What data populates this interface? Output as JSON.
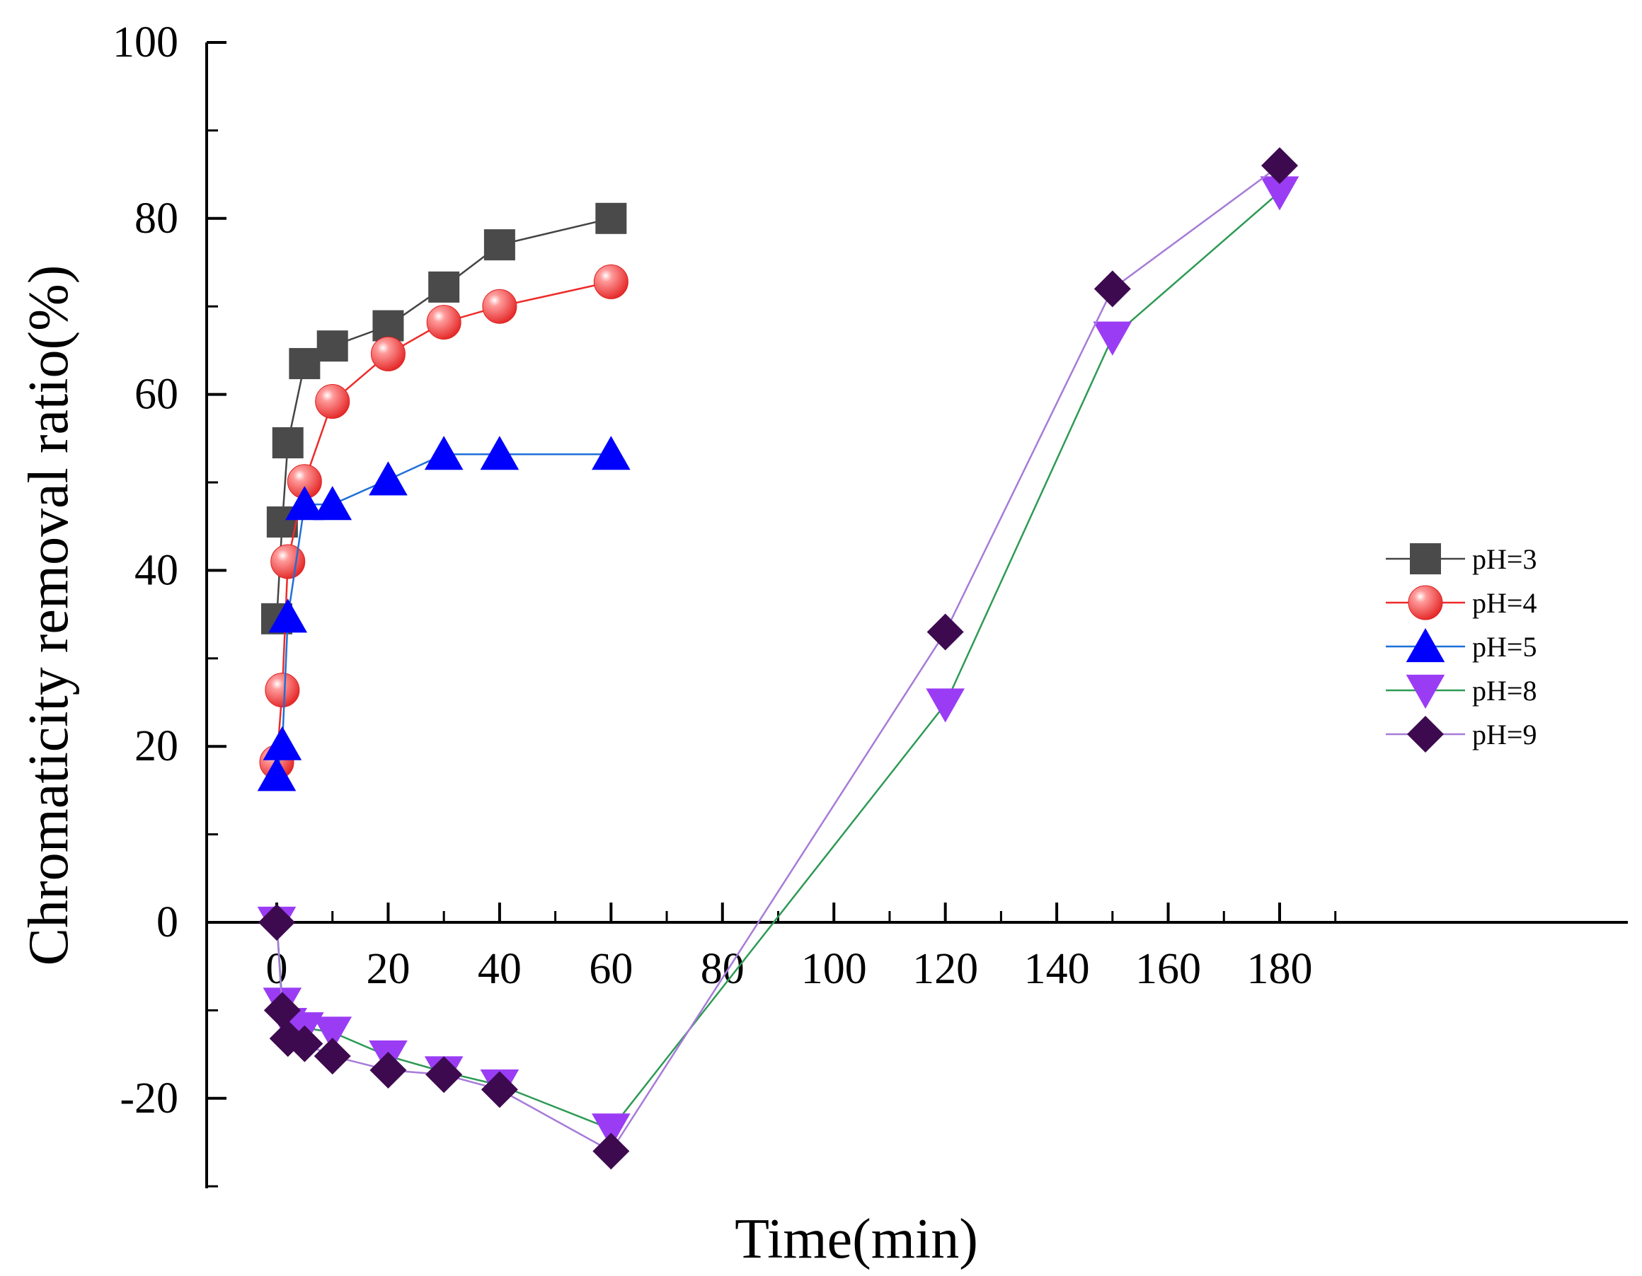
{
  "chart_data": {
    "type": "line",
    "title": "",
    "xlabel": "Time(min)",
    "ylabel": "Chromaticity removal ratio(%)",
    "xlim": [
      -10,
      190
    ],
    "ylim": [
      -30,
      100
    ],
    "xticks": [
      0,
      20,
      40,
      60,
      80,
      100,
      120,
      140,
      160,
      180
    ],
    "yticks": [
      -20,
      0,
      20,
      40,
      60,
      80,
      100
    ],
    "grid": false,
    "legend_position": "right",
    "series": [
      {
        "name": "pH=3",
        "marker": "square",
        "line_color": "#444444",
        "marker_color": "#4a4a4a",
        "x": [
          0,
          1,
          2,
          5,
          10,
          20,
          30,
          40,
          60
        ],
        "y": [
          34.5,
          45.5,
          54.5,
          63.5,
          65.5,
          67.8,
          72.2,
          77,
          80
        ]
      },
      {
        "name": "pH=4",
        "marker": "circle",
        "line_color": "#ee2a2a",
        "marker_color": "#ee3333",
        "x": [
          0,
          1,
          2,
          5,
          10,
          20,
          30,
          40,
          60
        ],
        "y": [
          18.2,
          26.4,
          41,
          50.1,
          59.2,
          64.6,
          68.2,
          70,
          72.8
        ]
      },
      {
        "name": "pH=5",
        "marker": "triangle-up",
        "line_color": "#1f6fd8",
        "marker_color": "#0000ff",
        "x": [
          0,
          1,
          2,
          5,
          10,
          20,
          30,
          40,
          60
        ],
        "y": [
          16.7,
          20.2,
          34.7,
          47.5,
          47.5,
          50.3,
          53.2,
          53.2,
          53.2
        ]
      },
      {
        "name": "pH=8",
        "marker": "triangle-down",
        "line_color": "#2e9a55",
        "marker_color": "#9b3cf5",
        "x": [
          0,
          1,
          2,
          5,
          10,
          20,
          30,
          40,
          60,
          120,
          150,
          180
        ],
        "y": [
          0,
          -9.2,
          -11.5,
          -12,
          -12.5,
          -15.2,
          -17,
          -18.5,
          -23.5,
          24.8,
          66.5,
          83
        ]
      },
      {
        "name": "pH=9",
        "marker": "diamond",
        "line_color": "#a67bd8",
        "marker_color": "#3d0a4f",
        "x": [
          0,
          1,
          2,
          5,
          10,
          20,
          30,
          40,
          60,
          120,
          150,
          180
        ],
        "y": [
          0,
          -10,
          -13.2,
          -13.8,
          -15.2,
          -16.8,
          -17.3,
          -19,
          -26,
          33,
          72,
          86
        ]
      }
    ]
  }
}
